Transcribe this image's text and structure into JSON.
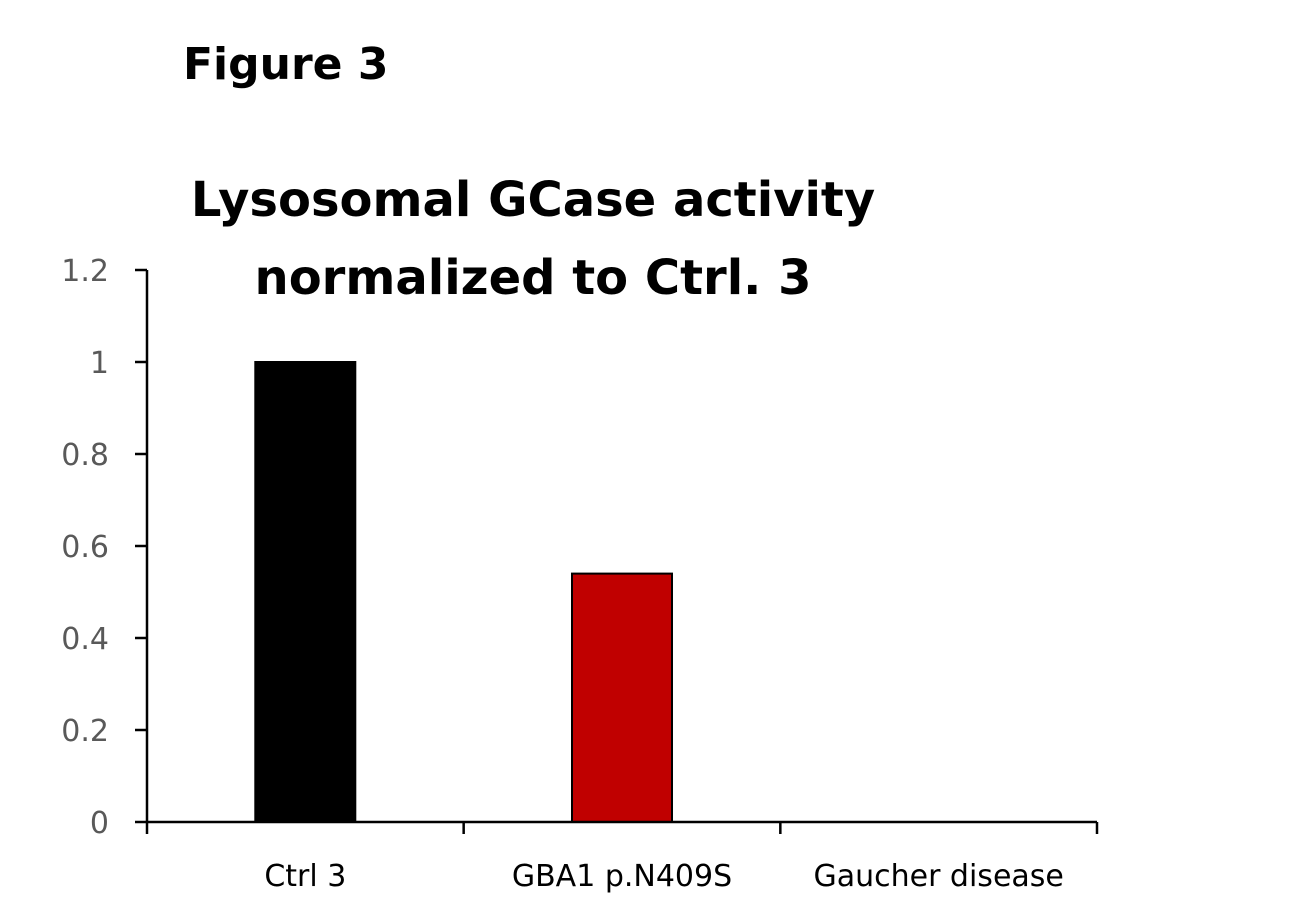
{
  "figure_label": "Figure 3",
  "chart_data": {
    "type": "bar",
    "title": "Lysosomal GCase activity normalized to Ctrl. 3",
    "title_lines": [
      "Lysosomal GCase activity",
      "normalized to Ctrl. 3"
    ],
    "xlabel": "",
    "ylabel": "",
    "categories": [
      "Ctrl 3",
      "GBA1 p.N409S",
      "Gaucher disease"
    ],
    "values": [
      1.0,
      0.54,
      0
    ],
    "colors": [
      "#000000",
      "#c00000",
      "#c00000"
    ],
    "ylim": [
      0,
      1.2
    ],
    "yticks": [
      0,
      0.2,
      0.4,
      0.6,
      0.8,
      1,
      1.2
    ],
    "ytick_labels": [
      "0",
      "0.2",
      "0.4",
      "0.6",
      "0.8",
      "1",
      "1.2"
    ],
    "grid": false,
    "legend": "none"
  }
}
